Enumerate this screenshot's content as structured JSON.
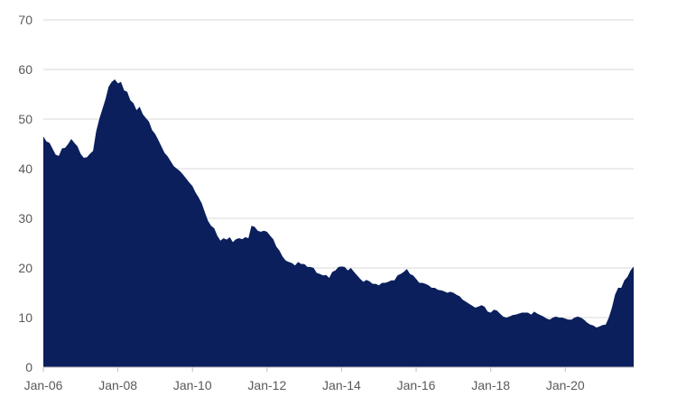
{
  "chart_data": {
    "type": "area",
    "title": "",
    "xlabel": "",
    "ylabel": "",
    "ylim": [
      0,
      70
    ],
    "xlim": [
      "2006-01",
      "2021-11"
    ],
    "y_ticks": [
      0,
      10,
      20,
      30,
      40,
      50,
      60,
      70
    ],
    "x_ticks": [
      "Jan-06",
      "Jan-08",
      "Jan-10",
      "Jan-12",
      "Jan-14",
      "Jan-16",
      "Jan-18",
      "Jan-20"
    ],
    "grid": "horizontal",
    "legend": "none",
    "series": [
      {
        "color": "#0a1f5c",
        "points": [
          [
            "2006-01",
            46.5
          ],
          [
            "2006-02",
            45.5
          ],
          [
            "2006-03",
            45.2
          ],
          [
            "2006-04",
            44.0
          ],
          [
            "2006-05",
            42.8
          ],
          [
            "2006-06",
            42.6
          ],
          [
            "2006-07",
            44.1
          ],
          [
            "2006-08",
            44.2
          ],
          [
            "2006-09",
            45.0
          ],
          [
            "2006-10",
            46.0
          ],
          [
            "2006-11",
            45.2
          ],
          [
            "2006-12",
            44.5
          ],
          [
            "2007-01",
            43.0
          ],
          [
            "2007-02",
            42.2
          ],
          [
            "2007-03",
            42.3
          ],
          [
            "2007-04",
            43.0
          ],
          [
            "2007-05",
            43.6
          ],
          [
            "2007-06",
            47.5
          ],
          [
            "2007-07",
            50.0
          ],
          [
            "2007-08",
            52.0
          ],
          [
            "2007-09",
            54.0
          ],
          [
            "2007-10",
            56.5
          ],
          [
            "2007-11",
            57.5
          ],
          [
            "2007-12",
            58.0
          ],
          [
            "2008-01",
            57.2
          ],
          [
            "2008-02",
            57.5
          ],
          [
            "2008-03",
            55.8
          ],
          [
            "2008-04",
            55.5
          ],
          [
            "2008-05",
            53.8
          ],
          [
            "2008-06",
            53.2
          ],
          [
            "2008-07",
            51.8
          ],
          [
            "2008-08",
            52.5
          ],
          [
            "2008-09",
            51.0
          ],
          [
            "2008-10",
            50.2
          ],
          [
            "2008-11",
            49.5
          ],
          [
            "2008-12",
            47.8
          ],
          [
            "2009-01",
            47.0
          ],
          [
            "2009-02",
            45.8
          ],
          [
            "2009-03",
            44.5
          ],
          [
            "2009-04",
            43.2
          ],
          [
            "2009-05",
            42.5
          ],
          [
            "2009-06",
            41.5
          ],
          [
            "2009-07",
            40.5
          ],
          [
            "2009-08",
            40.0
          ],
          [
            "2009-09",
            39.5
          ],
          [
            "2009-10",
            38.8
          ],
          [
            "2009-11",
            38.0
          ],
          [
            "2009-12",
            37.2
          ],
          [
            "2010-01",
            36.5
          ],
          [
            "2010-02",
            35.2
          ],
          [
            "2010-03",
            34.2
          ],
          [
            "2010-04",
            33.0
          ],
          [
            "2010-05",
            31.2
          ],
          [
            "2010-06",
            29.5
          ],
          [
            "2010-07",
            28.5
          ],
          [
            "2010-08",
            28.0
          ],
          [
            "2010-09",
            26.5
          ],
          [
            "2010-10",
            25.5
          ],
          [
            "2010-11",
            26.0
          ],
          [
            "2010-12",
            25.7
          ],
          [
            "2011-01",
            26.2
          ],
          [
            "2011-02",
            25.2
          ],
          [
            "2011-03",
            25.8
          ],
          [
            "2011-04",
            26.0
          ],
          [
            "2011-05",
            25.8
          ],
          [
            "2011-06",
            26.2
          ],
          [
            "2011-07",
            26.0
          ],
          [
            "2011-08",
            28.5
          ],
          [
            "2011-09",
            28.3
          ],
          [
            "2011-10",
            27.5
          ],
          [
            "2011-11",
            27.3
          ],
          [
            "2011-12",
            27.5
          ],
          [
            "2012-01",
            27.3
          ],
          [
            "2012-02",
            26.5
          ],
          [
            "2012-03",
            25.8
          ],
          [
            "2012-04",
            24.3
          ],
          [
            "2012-05",
            23.5
          ],
          [
            "2012-06",
            22.3
          ],
          [
            "2012-07",
            21.5
          ],
          [
            "2012-08",
            21.2
          ],
          [
            "2012-09",
            21.0
          ],
          [
            "2012-10",
            20.5
          ],
          [
            "2012-11",
            21.2
          ],
          [
            "2012-12",
            20.8
          ],
          [
            "2013-01",
            20.8
          ],
          [
            "2013-02",
            20.2
          ],
          [
            "2013-03",
            20.2
          ],
          [
            "2013-04",
            20.0
          ],
          [
            "2013-05",
            19.0
          ],
          [
            "2013-06",
            18.8
          ],
          [
            "2013-07",
            18.5
          ],
          [
            "2013-08",
            18.6
          ],
          [
            "2013-09",
            18.0
          ],
          [
            "2013-10",
            19.2
          ],
          [
            "2013-11",
            19.5
          ],
          [
            "2013-12",
            20.2
          ],
          [
            "2014-01",
            20.3
          ],
          [
            "2014-02",
            20.2
          ],
          [
            "2014-03",
            19.5
          ],
          [
            "2014-04",
            20.0
          ],
          [
            "2014-05",
            19.2
          ],
          [
            "2014-06",
            18.5
          ],
          [
            "2014-07",
            17.8
          ],
          [
            "2014-08",
            17.2
          ],
          [
            "2014-09",
            17.6
          ],
          [
            "2014-10",
            17.3
          ],
          [
            "2014-11",
            16.8
          ],
          [
            "2014-12",
            16.8
          ],
          [
            "2015-01",
            16.5
          ],
          [
            "2015-02",
            17.0
          ],
          [
            "2015-03",
            17.0
          ],
          [
            "2015-04",
            17.2
          ],
          [
            "2015-05",
            17.5
          ],
          [
            "2015-06",
            17.5
          ],
          [
            "2015-07",
            18.5
          ],
          [
            "2015-08",
            18.8
          ],
          [
            "2015-09",
            19.2
          ],
          [
            "2015-10",
            19.8
          ],
          [
            "2015-11",
            18.8
          ],
          [
            "2015-12",
            18.5
          ],
          [
            "2016-01",
            17.8
          ],
          [
            "2016-02",
            17.0
          ],
          [
            "2016-03",
            17.0
          ],
          [
            "2016-04",
            16.8
          ],
          [
            "2016-05",
            16.5
          ],
          [
            "2016-06",
            16.0
          ],
          [
            "2016-07",
            16.0
          ],
          [
            "2016-08",
            15.6
          ],
          [
            "2016-09",
            15.5
          ],
          [
            "2016-10",
            15.3
          ],
          [
            "2016-11",
            15.0
          ],
          [
            "2016-12",
            15.2
          ],
          [
            "2017-01",
            15.0
          ],
          [
            "2017-02",
            14.6
          ],
          [
            "2017-03",
            14.3
          ],
          [
            "2017-04",
            13.6
          ],
          [
            "2017-05",
            13.2
          ],
          [
            "2017-06",
            12.8
          ],
          [
            "2017-07",
            12.4
          ],
          [
            "2017-08",
            12.0
          ],
          [
            "2017-09",
            12.2
          ],
          [
            "2017-10",
            12.5
          ],
          [
            "2017-11",
            12.2
          ],
          [
            "2017-12",
            11.2
          ],
          [
            "2018-01",
            11.0
          ],
          [
            "2018-02",
            11.6
          ],
          [
            "2018-03",
            11.4
          ],
          [
            "2018-04",
            10.8
          ],
          [
            "2018-05",
            10.2
          ],
          [
            "2018-06",
            10.0
          ],
          [
            "2018-07",
            10.2
          ],
          [
            "2018-08",
            10.5
          ],
          [
            "2018-09",
            10.6
          ],
          [
            "2018-10",
            10.8
          ],
          [
            "2018-11",
            11.0
          ],
          [
            "2018-12",
            11.0
          ],
          [
            "2019-01",
            11.0
          ],
          [
            "2019-02",
            10.6
          ],
          [
            "2019-03",
            11.2
          ],
          [
            "2019-04",
            10.8
          ],
          [
            "2019-05",
            10.5
          ],
          [
            "2019-06",
            10.2
          ],
          [
            "2019-07",
            9.8
          ],
          [
            "2019-08",
            9.6
          ],
          [
            "2019-09",
            10.0
          ],
          [
            "2019-10",
            10.2
          ],
          [
            "2019-11",
            10.0
          ],
          [
            "2019-12",
            10.0
          ],
          [
            "2020-01",
            9.8
          ],
          [
            "2020-02",
            9.6
          ],
          [
            "2020-03",
            9.6
          ],
          [
            "2020-04",
            10.0
          ],
          [
            "2020-05",
            10.2
          ],
          [
            "2020-06",
            10.0
          ],
          [
            "2020-07",
            9.6
          ],
          [
            "2020-08",
            9.0
          ],
          [
            "2020-09",
            8.6
          ],
          [
            "2020-10",
            8.4
          ],
          [
            "2020-11",
            8.0
          ],
          [
            "2020-12",
            8.2
          ],
          [
            "2021-01",
            8.5
          ],
          [
            "2021-02",
            8.6
          ],
          [
            "2021-03",
            10.0
          ],
          [
            "2021-04",
            12.0
          ],
          [
            "2021-05",
            14.6
          ],
          [
            "2021-06",
            16.0
          ],
          [
            "2021-07",
            16.0
          ],
          [
            "2021-08",
            17.5
          ],
          [
            "2021-09",
            18.2
          ],
          [
            "2021-10",
            19.5
          ],
          [
            "2021-11",
            20.3
          ]
        ]
      }
    ]
  }
}
